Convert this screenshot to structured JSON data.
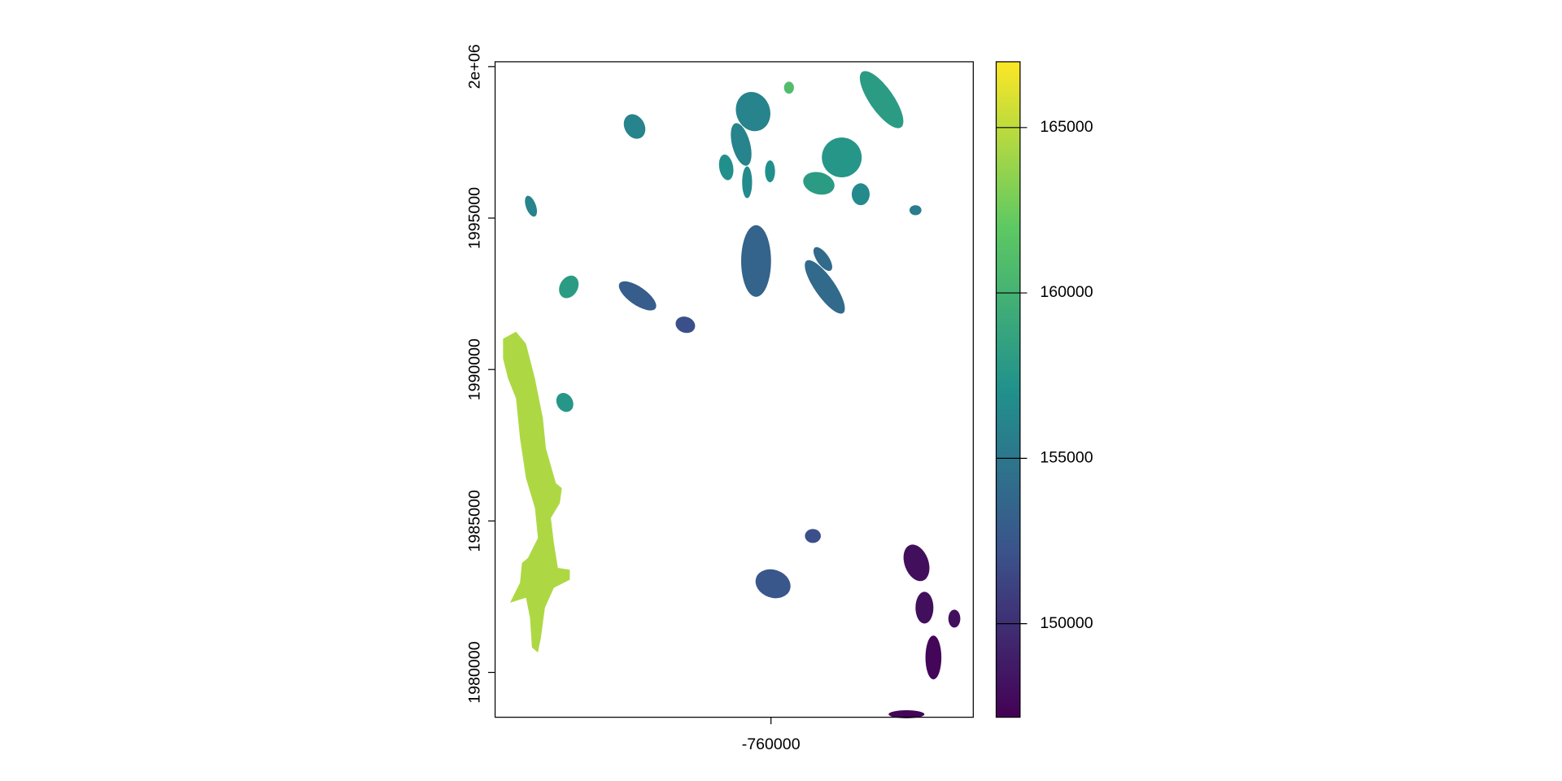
{
  "chart_data": {
    "type": "raster",
    "xlim": [
      -769110,
      -753320
    ],
    "ylim": [
      1978520,
      2000160
    ],
    "xticks": [
      -760000
    ],
    "yticks": [
      1980000,
      1985000,
      1990000,
      1995000,
      {
        "value": 2000000,
        "label": "2e+06"
      }
    ],
    "colorbar": {
      "palette": "viridis",
      "zlim": [
        147170,
        166990
      ],
      "ticks": [
        150000,
        155000,
        160000,
        165000
      ]
    },
    "values": [
      164500,
      158000,
      161000,
      156000,
      156000,
      156000,
      157000,
      156500,
      157000,
      157500,
      158000,
      156500,
      155500,
      156000,
      158000,
      157500,
      153500,
      154000,
      154000,
      153000,
      152000,
      152500,
      152000,
      148000,
      148000,
      147500,
      148000,
      147500
    ]
  }
}
